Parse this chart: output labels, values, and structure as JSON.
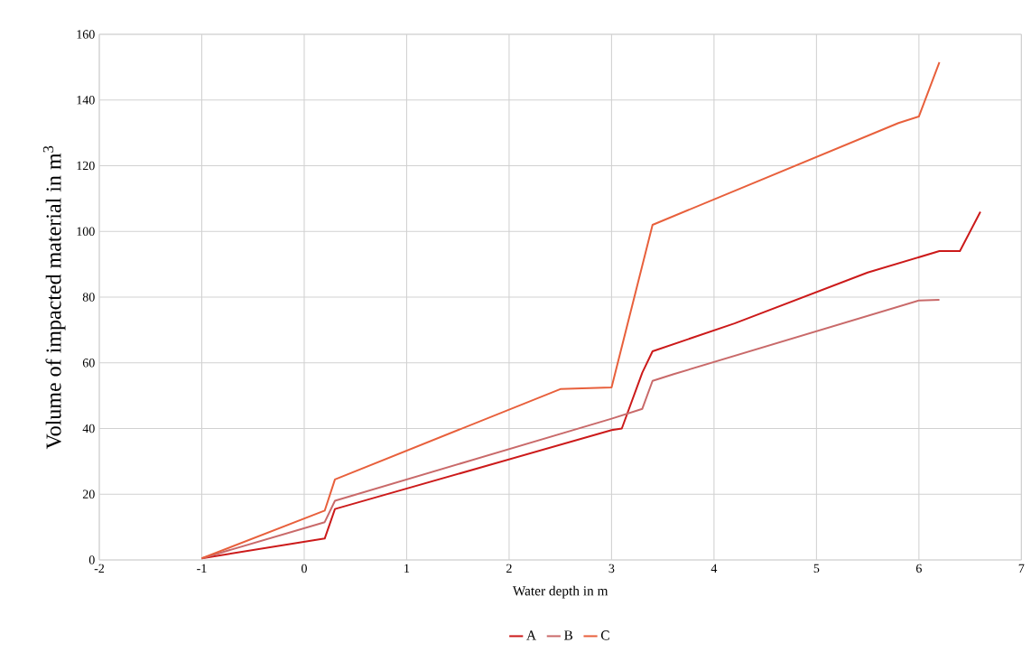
{
  "chart_data": {
    "type": "line",
    "xlabel": "Water depth in m",
    "ylabel": "Volume of impacted material in m$^{3}$",
    "xlim": [
      -2,
      7
    ],
    "xticks": [
      -2,
      -1,
      0,
      1,
      2,
      3,
      4,
      5,
      6,
      7
    ],
    "ylim": [
      0,
      160
    ],
    "yticks": [
      0,
      20,
      40,
      60,
      80,
      100,
      120,
      140,
      160
    ],
    "grid": true,
    "legend": "bottom",
    "marker": "none",
    "line_style": "solid",
    "series": [
      {
        "name": "A",
        "color": "#cc1a1a",
        "x": [
          -1,
          0.2,
          0.3,
          3,
          3.1,
          3.3,
          3.4,
          4.2,
          5.5,
          6.2,
          6.4,
          6.6
        ],
        "values": [
          0.5,
          6.5,
          15.5,
          39.5,
          40,
          57,
          63.5,
          72,
          87.5,
          94,
          94,
          106
        ]
      },
      {
        "name": "B",
        "color": "#c96a6a",
        "x": [
          -1,
          0.2,
          0.3,
          3,
          3.3,
          3.4,
          3.6,
          6,
          6.2
        ],
        "values": [
          0.5,
          11.5,
          18,
          43,
          46,
          54.5,
          56.5,
          79,
          79.2
        ]
      },
      {
        "name": "C",
        "color": "#e8603c",
        "x": [
          -1,
          0.2,
          0.3,
          2.5,
          3,
          3.4,
          5.8,
          6,
          6.2
        ],
        "values": [
          0.5,
          15,
          24.5,
          52,
          52.5,
          102,
          133,
          135,
          151.5
        ]
      }
    ]
  }
}
